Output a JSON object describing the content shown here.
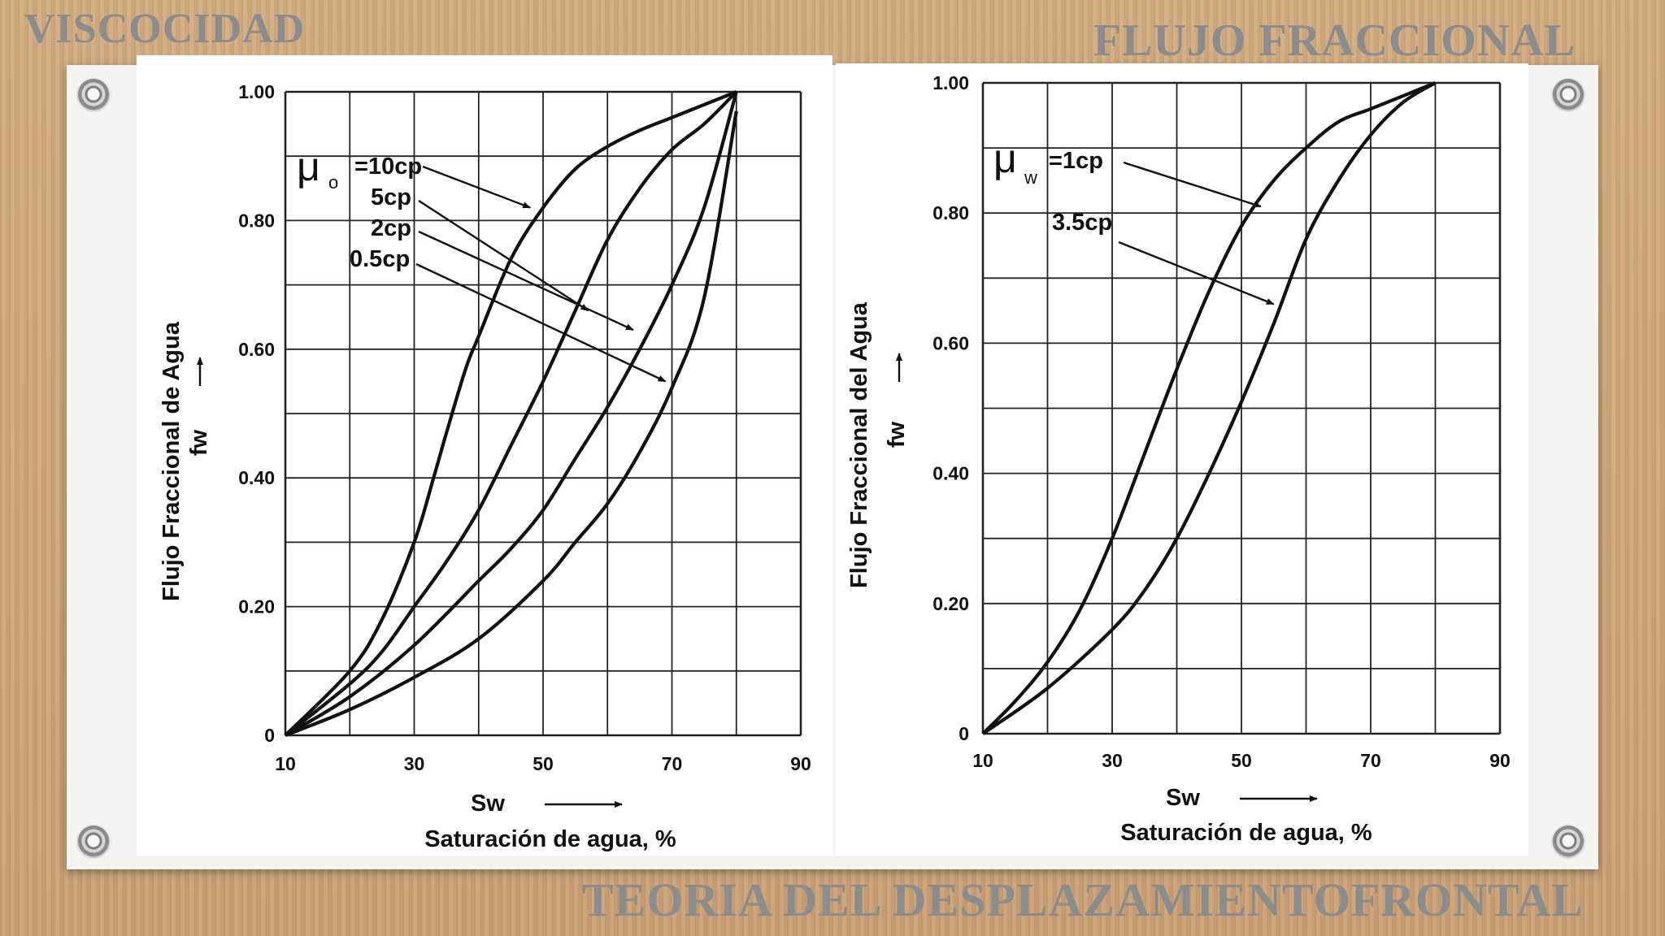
{
  "slide": {
    "title_left": "VISCOCIDAD",
    "title_right": "FLUJO FRACCIONAL",
    "title_bottom": "TEORIA DEL DESPLAZAMIENTOFRONTAL"
  },
  "chart_data": [
    {
      "type": "line",
      "xlabel": "Sw",
      "xlabel2": "Saturación de agua, %",
      "ylabel": "Flujo Fraccional de Agua",
      "ylabel2": "fw",
      "xlim": [
        10,
        90
      ],
      "ylim": [
        0,
        1
      ],
      "x_ticks": [
        "10",
        "30",
        "50",
        "70",
        "90"
      ],
      "y_ticks": [
        "0",
        "0.20",
        "0.40",
        "0.60",
        "0.80",
        "1.00"
      ],
      "grid": true,
      "legend_symbol": "μ",
      "legend_subscript": "o",
      "series": [
        {
          "name": "10cp",
          "x": [
            10,
            20,
            25,
            30,
            33,
            35,
            38,
            40,
            45,
            50,
            55,
            60,
            65,
            70,
            75,
            80
          ],
          "y": [
            0,
            0.1,
            0.18,
            0.3,
            0.4,
            0.47,
            0.57,
            0.62,
            0.74,
            0.82,
            0.88,
            0.915,
            0.94,
            0.96,
            0.98,
            1.0
          ]
        },
        {
          "name": "5cp",
          "x": [
            10,
            20,
            25,
            30,
            35,
            40,
            45,
            50,
            55,
            60,
            65,
            70,
            75,
            80
          ],
          "y": [
            0,
            0.08,
            0.13,
            0.2,
            0.27,
            0.35,
            0.45,
            0.55,
            0.66,
            0.77,
            0.85,
            0.91,
            0.95,
            1.0
          ]
        },
        {
          "name": "2cp",
          "x": [
            10,
            20,
            30,
            40,
            45,
            50,
            55,
            60,
            65,
            70,
            75,
            80
          ],
          "y": [
            0,
            0.06,
            0.14,
            0.24,
            0.29,
            0.35,
            0.43,
            0.51,
            0.6,
            0.7,
            0.82,
            1.0
          ]
        },
        {
          "name": "0.5cp",
          "x": [
            10,
            20,
            30,
            40,
            50,
            55,
            60,
            65,
            70,
            75,
            80
          ],
          "y": [
            0,
            0.04,
            0.09,
            0.15,
            0.24,
            0.3,
            0.36,
            0.44,
            0.54,
            0.68,
            0.97
          ]
        }
      ]
    },
    {
      "type": "line",
      "xlabel": "Sw",
      "xlabel2": "Saturación de agua, %",
      "ylabel": "Flujo Fraccional del Agua",
      "ylabel2": "fw",
      "xlim": [
        10,
        90
      ],
      "ylim": [
        0,
        1
      ],
      "x_ticks": [
        "10",
        "30",
        "50",
        "70",
        "90"
      ],
      "y_ticks": [
        "0",
        "0.20",
        "0.40",
        "0.60",
        "0.80",
        "1.00"
      ],
      "grid": true,
      "legend_symbol": "μ",
      "legend_subscript": "w",
      "series": [
        {
          "name": "1cp",
          "x": [
            10,
            15,
            20,
            25,
            30,
            35,
            40,
            45,
            50,
            55,
            60,
            65,
            70,
            75,
            80
          ],
          "y": [
            0,
            0.05,
            0.11,
            0.19,
            0.3,
            0.43,
            0.56,
            0.68,
            0.78,
            0.85,
            0.9,
            0.94,
            0.96,
            0.98,
            1.0
          ]
        },
        {
          "name": "3.5cp",
          "x": [
            10,
            20,
            30,
            35,
            40,
            45,
            50,
            55,
            60,
            65,
            70,
            75,
            80
          ],
          "y": [
            0,
            0.07,
            0.16,
            0.22,
            0.3,
            0.4,
            0.51,
            0.63,
            0.76,
            0.85,
            0.92,
            0.97,
            1.0
          ]
        }
      ]
    }
  ]
}
